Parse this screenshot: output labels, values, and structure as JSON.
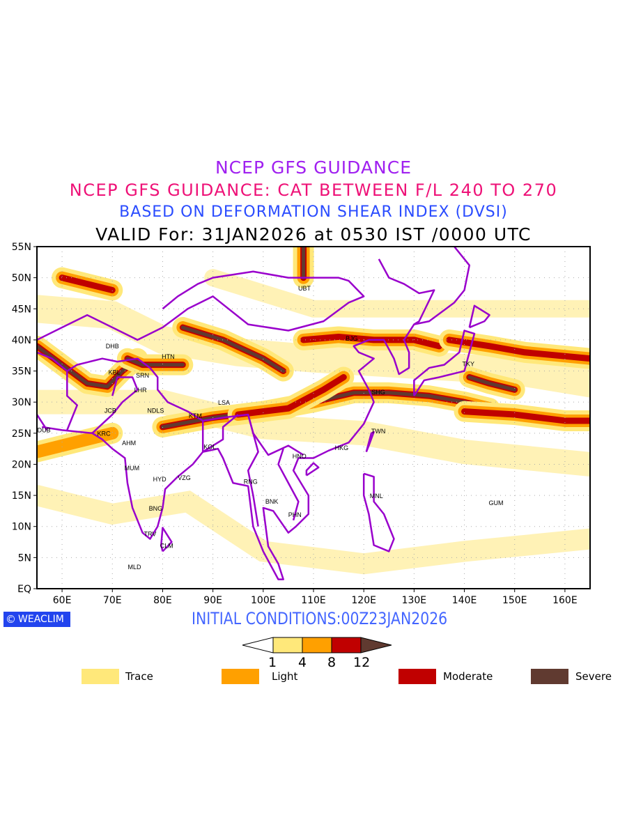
{
  "titles": {
    "line1": "NCEP GFS GUIDANCE",
    "line2": "NCEP GFS GUIDANCE: CAT BETWEEN F/L 240 TO 270",
    "line3": "BASED ON DEFORMATION SHEAR INDEX (DVSI)",
    "line4": "VALID For: 31JAN2026 at 0530 IST /0000 UTC"
  },
  "map": {
    "lon_range": [
      55,
      165
    ],
    "lat_range": [
      0,
      55
    ],
    "lat_ticks": [
      {
        "v": 55,
        "label": "55N"
      },
      {
        "v": 50,
        "label": "50N"
      },
      {
        "v": 45,
        "label": "45N"
      },
      {
        "v": 40,
        "label": "40N"
      },
      {
        "v": 35,
        "label": "35N"
      },
      {
        "v": 30,
        "label": "30N"
      },
      {
        "v": 25,
        "label": "25N"
      },
      {
        "v": 20,
        "label": "20N"
      },
      {
        "v": 15,
        "label": "15N"
      },
      {
        "v": 10,
        "label": "10N"
      },
      {
        "v": 5,
        "label": "5N"
      },
      {
        "v": 0,
        "label": "EQ"
      }
    ],
    "lon_ticks": [
      {
        "v": 60,
        "label": "60E"
      },
      {
        "v": 70,
        "label": "70E"
      },
      {
        "v": 80,
        "label": "80E"
      },
      {
        "v": 90,
        "label": "90E"
      },
      {
        "v": 100,
        "label": "100E"
      },
      {
        "v": 110,
        "label": "110E"
      },
      {
        "v": 120,
        "label": "120E"
      },
      {
        "v": 130,
        "label": "130E"
      },
      {
        "v": 140,
        "label": "140E"
      },
      {
        "v": 150,
        "label": "150E"
      },
      {
        "v": 160,
        "label": "160E"
      }
    ],
    "cities": [
      {
        "name": "DHB",
        "lon": 70,
        "lat": 39
      },
      {
        "name": "HTN",
        "lon": 81.1,
        "lat": 37.3
      },
      {
        "name": "KBL",
        "lon": 70.4,
        "lat": 34.8
      },
      {
        "name": "SRN",
        "lon": 76,
        "lat": 34.3
      },
      {
        "name": "LHR",
        "lon": 75.6,
        "lat": 31.9
      },
      {
        "name": "JCB",
        "lon": 69.6,
        "lat": 28.6
      },
      {
        "name": "NDLS",
        "lon": 78.6,
        "lat": 28.6
      },
      {
        "name": "KTM",
        "lon": 86.5,
        "lat": 27.8
      },
      {
        "name": "LSA",
        "lon": 92.2,
        "lat": 29.9
      },
      {
        "name": "DUB",
        "lon": 56.4,
        "lat": 25.5
      },
      {
        "name": "KRC",
        "lon": 68.3,
        "lat": 24.9
      },
      {
        "name": "AHM",
        "lon": 73.3,
        "lat": 23.4
      },
      {
        "name": "KOL",
        "lon": 89.4,
        "lat": 22.8
      },
      {
        "name": "MUM",
        "lon": 73.9,
        "lat": 19.4
      },
      {
        "name": "HYD",
        "lon": 79.4,
        "lat": 17.6
      },
      {
        "name": "VZG",
        "lon": 84.3,
        "lat": 17.8
      },
      {
        "name": "BNG",
        "lon": 78.6,
        "lat": 12.9
      },
      {
        "name": "TRV",
        "lon": 77.5,
        "lat": 8.8
      },
      {
        "name": "CLM",
        "lon": 80.8,
        "lat": 6.9
      },
      {
        "name": "MLD",
        "lon": 74.4,
        "lat": 3.5
      },
      {
        "name": "UBT",
        "lon": 108.2,
        "lat": 48.3
      },
      {
        "name": "BJG",
        "lon": 117.6,
        "lat": 40.2
      },
      {
        "name": "TKY",
        "lon": 140.8,
        "lat": 36.1
      },
      {
        "name": "SHG",
        "lon": 122.9,
        "lat": 31.6
      },
      {
        "name": "TWN",
        "lon": 122.9,
        "lat": 25.3
      },
      {
        "name": "HKG",
        "lon": 115.6,
        "lat": 22.6
      },
      {
        "name": "HNO",
        "lon": 107.2,
        "lat": 21.3
      },
      {
        "name": "RNG",
        "lon": 97.5,
        "lat": 17.2
      },
      {
        "name": "BNK",
        "lon": 101.7,
        "lat": 14
      },
      {
        "name": "PHN",
        "lon": 106.3,
        "lat": 11.9
      },
      {
        "name": "MNL",
        "lon": 122.5,
        "lat": 14.9
      },
      {
        "name": "GUM",
        "lon": 146.3,
        "lat": 13.8
      }
    ]
  },
  "footer": {
    "logo": "WEACLIM",
    "logo_icon": "copyright-icon",
    "initial": "INITIAL CONDITIONS:00Z23JAN2026"
  },
  "colorbar": {
    "ticks": [
      "1",
      "4",
      "8",
      "12"
    ],
    "colors": [
      "#ffe87a",
      "#ffa000",
      "#c00000",
      "#603a30"
    ]
  },
  "legend": [
    {
      "label": "Trace",
      "color": "#ffe87a"
    },
    {
      "label": "Light",
      "color": "#ffa000"
    },
    {
      "label": "Moderate",
      "color": "#c00000"
    },
    {
      "label": "Severe",
      "color": "#603a30"
    }
  ],
  "colors": {
    "border": "#9900cc",
    "grid": "#aaaaaa"
  }
}
